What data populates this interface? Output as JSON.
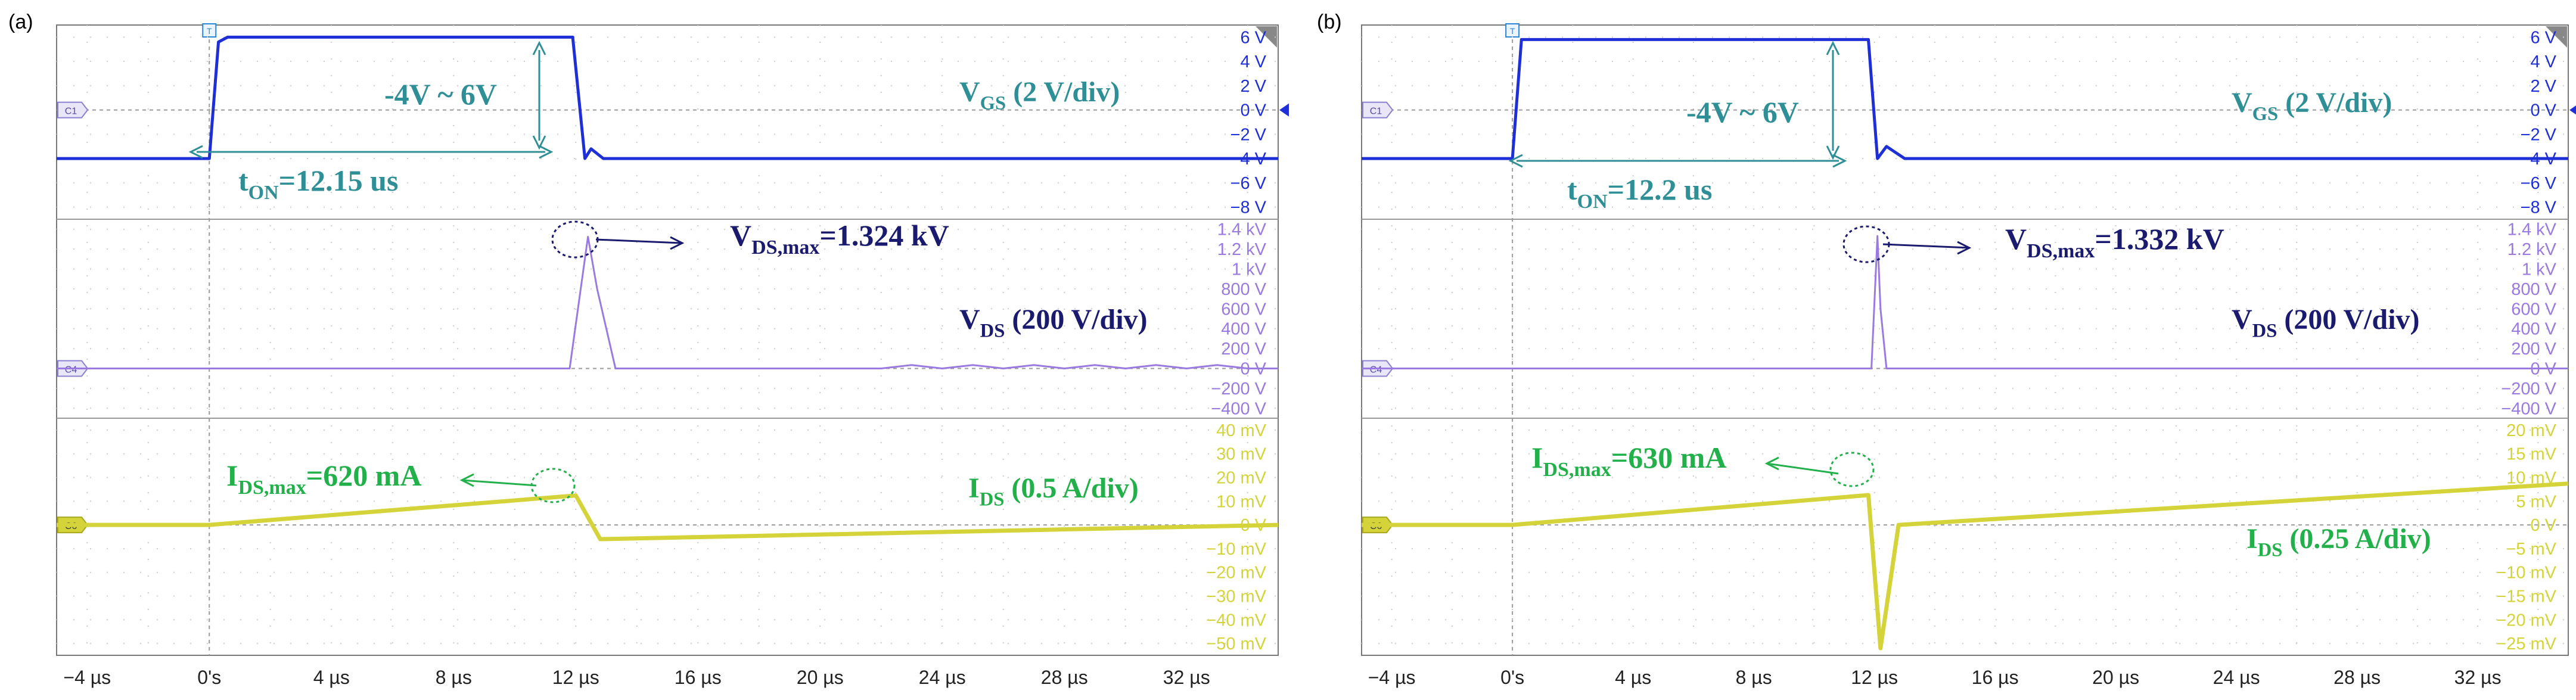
{
  "chart_data": [
    {
      "type": "line",
      "panel_label": "(a)",
      "x_unit": "µs",
      "xlim": [
        -5,
        35
      ],
      "xtick_labels": [
        "−4 µs",
        "0's",
        "4 µs",
        "8 µs",
        "12 µs",
        "16 µs",
        "20 µs",
        "24 µs",
        "28 µs",
        "32 µs"
      ],
      "xtick_values": [
        -4,
        0,
        4,
        8,
        12,
        16,
        20,
        24,
        28,
        32
      ],
      "trigger_marker": "T",
      "channels": [
        {
          "id": "C1",
          "color": "#1f2fd6",
          "ticks": [
            "6 V",
            "4 V",
            "2 V",
            "0 V",
            "−2 V",
            "−4 V",
            "−6 V",
            "−8 V"
          ],
          "tick_values": [
            6,
            4,
            2,
            0,
            -2,
            -4,
            -6,
            -8
          ],
          "ylim": [
            -9,
            7
          ],
          "series": {
            "name": "VGS",
            "x": [
              -5,
              0,
              0.3,
              0.6,
              11.9,
              12.3,
              12.5,
              12.9,
              35
            ],
            "y": [
              -4,
              -4,
              5.6,
              6,
              6,
              -4,
              -3.2,
              -4,
              -4
            ]
          },
          "label": {
            "main": "V",
            "sub": "GS",
            "rest": " (2 V/div)"
          }
        },
        {
          "id": "C4",
          "color": "#9a7ae0",
          "ticks": [
            "1.4 kV",
            "1.2 kV",
            "1 kV",
            "800 V",
            "600 V",
            "400 V",
            "200 V",
            "0 V",
            "−200 V",
            "−400 V"
          ],
          "tick_values": [
            1400,
            1200,
            1000,
            800,
            600,
            400,
            200,
            0,
            -200,
            -400
          ],
          "ylim": [
            -500,
            1500
          ],
          "series": {
            "name": "VDS",
            "x": [
              -5,
              11.8,
              12.4,
              12.7,
              13.3,
              22,
              23,
              24,
              25,
              26,
              27,
              28,
              29,
              30,
              31,
              32,
              33,
              34,
              35
            ],
            "y": [
              0,
              0,
              1324,
              800,
              0,
              0,
              35,
              0,
              35,
              0,
              35,
              0,
              35,
              0,
              35,
              0,
              35,
              0,
              0
            ]
          },
          "label": {
            "main": "V",
            "sub": "DS",
            "rest": " (200 V/div)"
          }
        },
        {
          "id": "C6",
          "color": "#d4d43a",
          "ticks": [
            "40 mV",
            "30 mV",
            "20 mV",
            "10 mV",
            "0 V",
            "−10 mV",
            "−20 mV",
            "−30 mV",
            "−40 mV",
            "−50 mV"
          ],
          "tick_values": [
            40,
            30,
            20,
            10,
            0,
            -10,
            -20,
            -30,
            -40,
            -50
          ],
          "ylim": [
            -55,
            45
          ],
          "series": {
            "name": "IDS",
            "x": [
              -5,
              0,
              12,
              12.8,
              35
            ],
            "y": [
              0,
              0,
              12.4,
              -6,
              0
            ]
          },
          "label": {
            "main": "I",
            "sub": "DS",
            "rest": " (0.5 A/div)"
          }
        }
      ],
      "annotations": {
        "vgs_range": "-4V ~ 6V",
        "ton": {
          "main": "t",
          "sub": "ON",
          "rest": "=12.15 us"
        },
        "vds_max": {
          "main": "V",
          "sub": "DS,max",
          "rest": "=1.324 kV"
        },
        "ids_max": {
          "main": "I",
          "sub": "DS,max",
          "rest": "=620 mA"
        }
      }
    },
    {
      "type": "line",
      "panel_label": "(b)",
      "x_unit": "µs",
      "xlim": [
        -5,
        35
      ],
      "xtick_labels": [
        "−4 µs",
        "0's",
        "4 µs",
        "8 µs",
        "12 µs",
        "16 µs",
        "20 µs",
        "24 µs",
        "28 µs",
        "32 µs"
      ],
      "xtick_values": [
        -4,
        0,
        4,
        8,
        12,
        16,
        20,
        24,
        28,
        32
      ],
      "trigger_marker": "T",
      "channels": [
        {
          "id": "C1",
          "color": "#1f2fd6",
          "ticks": [
            "6 V",
            "4 V",
            "2 V",
            "0 V",
            "−2 V",
            "−4 V",
            "−6 V",
            "−8 V"
          ],
          "tick_values": [
            6,
            4,
            2,
            0,
            -2,
            -4,
            -6,
            -8
          ],
          "ylim": [
            -9,
            7
          ],
          "series": {
            "name": "VGS",
            "x": [
              -5,
              0,
              0.3,
              11.8,
              12.1,
              12.4,
              13,
              35
            ],
            "y": [
              -4,
              -4,
              5.8,
              5.8,
              -4,
              -3,
              -4,
              -4
            ]
          },
          "label": {
            "main": "V",
            "sub": "GS",
            "rest": " (2 V/div)"
          }
        },
        {
          "id": "C4",
          "color": "#9a7ae0",
          "ticks": [
            "1.4 kV",
            "1.2 kV",
            "1 kV",
            "800 V",
            "600 V",
            "400 V",
            "200 V",
            "0 V",
            "−200 V",
            "−400 V"
          ],
          "tick_values": [
            1400,
            1200,
            1000,
            800,
            600,
            400,
            200,
            0,
            -200,
            -400
          ],
          "ylim": [
            -500,
            1500
          ],
          "series": {
            "name": "VDS",
            "x": [
              -5,
              11.9,
              12.1,
              12.2,
              12.4,
              35
            ],
            "y": [
              0,
              0,
              1332,
              600,
              0,
              0
            ]
          },
          "label": {
            "main": "V",
            "sub": "DS",
            "rest": " (200 V/div)"
          }
        },
        {
          "id": "C6",
          "color": "#d4d43a",
          "ticks": [
            "20 mV",
            "15 mV",
            "10 mV",
            "5 mV",
            "0 V",
            "−5 mV",
            "−10 mV",
            "−15 mV",
            "−20 mV",
            "−25 mV"
          ],
          "tick_values": [
            20,
            15,
            10,
            5,
            0,
            -5,
            -10,
            -15,
            -20,
            -25
          ],
          "ylim": [
            -27.5,
            22.5
          ],
          "series": {
            "name": "IDS",
            "x": [
              -5,
              0,
              11.8,
              12.2,
              12.8,
              35
            ],
            "y": [
              0,
              0,
              6.3,
              -26,
              0,
              8.7
            ]
          },
          "label": {
            "main": "I",
            "sub": "DS",
            "rest": " (0.25 A/div)"
          }
        }
      ],
      "annotations": {
        "vgs_range": "-4V ~ 6V",
        "ton": {
          "main": "t",
          "sub": "ON",
          "rest": "=12.2 us"
        },
        "vds_max": {
          "main": "V",
          "sub": "DS,max",
          "rest": "=1.332 kV"
        },
        "ids_max": {
          "main": "I",
          "sub": "DS,max",
          "rest": "=630 mA"
        }
      }
    }
  ]
}
